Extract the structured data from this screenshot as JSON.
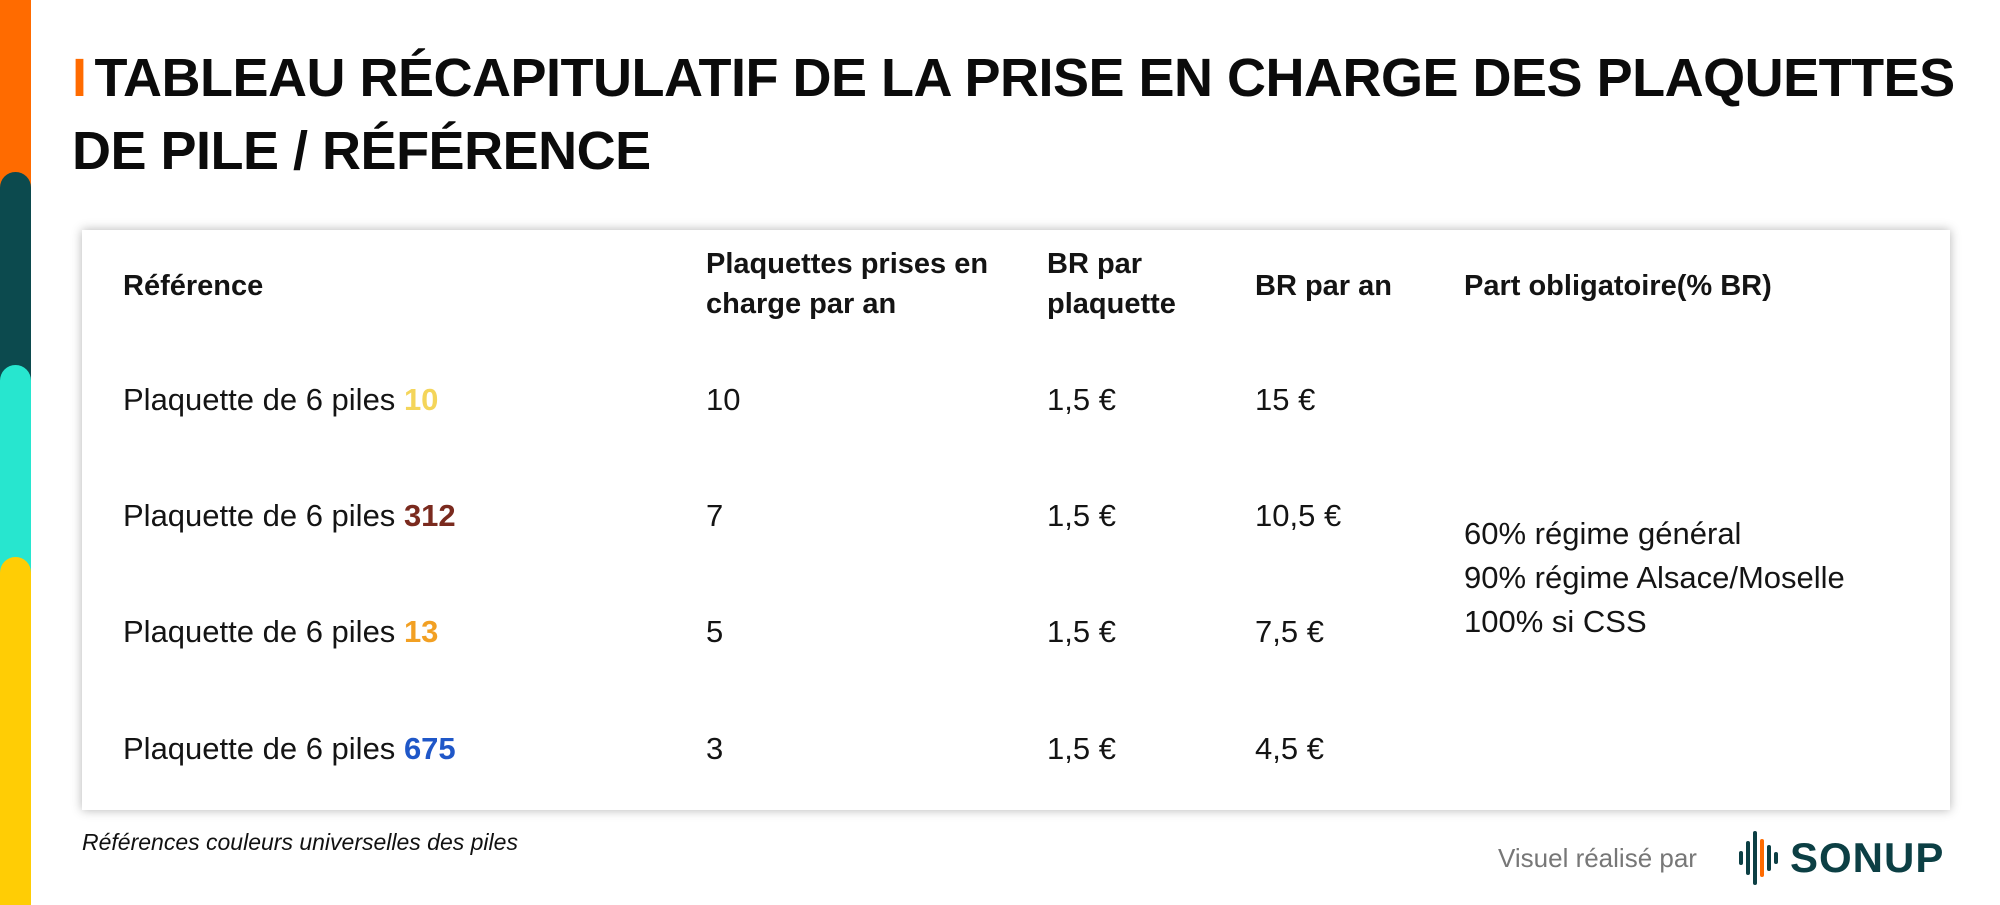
{
  "title": {
    "bar": "I",
    "text": "TABLEAU RÉCAPITULATIF DE LA PRISE EN CHARGE DES PLAQUETTES DE PILE / RÉFÉRENCE"
  },
  "table": {
    "headers": {
      "reference": "Référence",
      "plaquettes": "Plaquettes prises en charge par an",
      "br_plaquette": "BR par plaquette",
      "br_an": "BR par an",
      "part": "Part obligatoire(% BR)"
    },
    "rows": [
      {
        "label": "Plaquette de 6 piles",
        "size": "10",
        "size_color": "#f4d55a",
        "plaquettes": "10",
        "br_plaquette": "1,5 €",
        "br_an": "15 €"
      },
      {
        "label": "Plaquette de 6 piles",
        "size": "312",
        "size_color": "#7a2a1e",
        "plaquettes": "7",
        "br_plaquette": "1,5 €",
        "br_an": "10,5 €"
      },
      {
        "label": "Plaquette de 6 piles",
        "size": "13",
        "size_color": "#f2a023",
        "plaquettes": "5",
        "br_plaquette": "1,5 €",
        "br_an": "7,5 €"
      },
      {
        "label": "Plaquette de 6 piles",
        "size": "675",
        "size_color": "#1f57c8",
        "plaquettes": "3",
        "br_plaquette": "1,5 €",
        "br_an": "4,5 €"
      }
    ],
    "part_obligatoire": [
      "60% régime général",
      "90% régime Alsace/Moselle",
      "100% si CSS"
    ]
  },
  "footnote": "Références couleurs universelles des piles",
  "credit": "Visuel réalisé par",
  "logo": {
    "text": "SONUP",
    "icon": "soundwave-icon",
    "color": "#0c3f44",
    "dot_color": "#ff6b00"
  },
  "colors": {
    "accent": "#ff6b00",
    "stripe": [
      "#ff6b00",
      "#0c4a4e",
      "#27e6cf",
      "#ffcd05"
    ]
  }
}
